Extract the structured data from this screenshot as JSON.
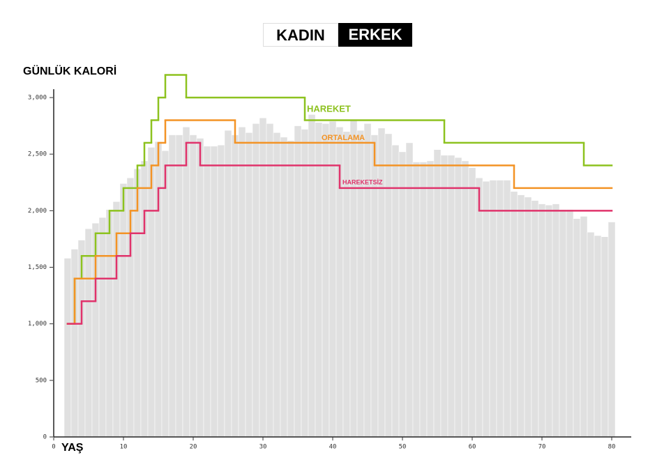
{
  "toggle": [
    "KADIN",
    "ERKEK"
  ],
  "chart_data": {
    "type": "bar",
    "y_label": "GÜNLÜK KALORİ",
    "x_label": "YAŞ",
    "color": "#e0e0e0",
    "x": [
      2,
      3,
      4,
      5,
      6,
      7,
      8,
      9,
      10,
      11,
      12,
      13,
      14,
      15,
      16,
      17,
      18,
      19,
      20,
      21,
      22,
      23,
      24,
      25,
      26,
      27,
      28,
      29,
      30,
      31,
      32,
      33,
      34,
      35,
      36,
      37,
      38,
      39,
      40,
      41,
      42,
      43,
      44,
      45,
      46,
      47,
      48,
      49,
      50,
      51,
      52,
      53,
      54,
      55,
      56,
      57,
      58,
      59,
      60,
      61,
      62,
      63,
      64,
      65,
      66,
      67,
      68,
      69,
      70,
      71,
      72,
      73,
      74,
      75,
      76,
      77,
      78,
      79,
      80
    ],
    "values": [
      1580,
      1660,
      1740,
      1840,
      1890,
      1940,
      2010,
      2080,
      2240,
      2290,
      2370,
      2440,
      2560,
      2610,
      2530,
      2670,
      2670,
      2740,
      2670,
      2640,
      2570,
      2570,
      2580,
      2710,
      2670,
      2740,
      2690,
      2770,
      2820,
      2770,
      2690,
      2650,
      2620,
      2750,
      2720,
      2850,
      2780,
      2770,
      2790,
      2740,
      2700,
      2800,
      2710,
      2770,
      2670,
      2730,
      2680,
      2580,
      2520,
      2600,
      2430,
      2430,
      2440,
      2540,
      2490,
      2490,
      2470,
      2440,
      2380,
      2290,
      2260,
      2270,
      2270,
      2270,
      2170,
      2140,
      2120,
      2090,
      2060,
      2050,
      2060,
      2010,
      2010,
      1930,
      1950,
      1810,
      1780,
      1770,
      1900
    ],
    "xlim": [
      0,
      80
    ],
    "xticks": [
      0,
      10,
      20,
      30,
      40,
      50,
      60,
      70,
      80
    ],
    "ylim": [
      0,
      3000
    ],
    "yticks": [
      0,
      500,
      {
        "value": 1000,
        "label": "1,000"
      },
      {
        "value": 1500,
        "label": "1,500"
      },
      {
        "value": 2000,
        "label": "2,000"
      },
      {
        "value": 2500,
        "label": "2,500"
      },
      {
        "value": 3000,
        "label": "3,000"
      }
    ],
    "series": [
      {
        "name": "HAREKET",
        "type": "step",
        "color": "#8dc21f",
        "x": [
          2,
          3,
          4,
          6,
          8,
          10,
          12,
          13,
          14,
          15,
          16,
          19,
          36,
          56,
          76
        ],
        "values": [
          1000,
          1400,
          1600,
          1800,
          2000,
          2200,
          2400,
          2600,
          2800,
          3000,
          3200,
          3000,
          2800,
          2600,
          2400
        ]
      },
      {
        "name": "ORTALAMA",
        "type": "step",
        "color": "#f39325",
        "x": [
          2,
          3,
          6,
          9,
          11,
          12,
          14,
          15,
          16,
          26,
          46,
          66
        ],
        "values": [
          1000,
          1400,
          1600,
          1800,
          2000,
          2200,
          2400,
          2600,
          2800,
          2600,
          2400,
          2200
        ]
      },
      {
        "name": "HAREKETSİZ",
        "type": "step",
        "color": "#e0336b",
        "x": [
          2,
          4,
          6,
          9,
          11,
          13,
          15,
          16,
          19,
          21,
          41,
          61
        ],
        "values": [
          1000,
          1200,
          1400,
          1600,
          1800,
          2000,
          2200,
          2400,
          2600,
          2400,
          2200,
          2000
        ]
      }
    ]
  }
}
